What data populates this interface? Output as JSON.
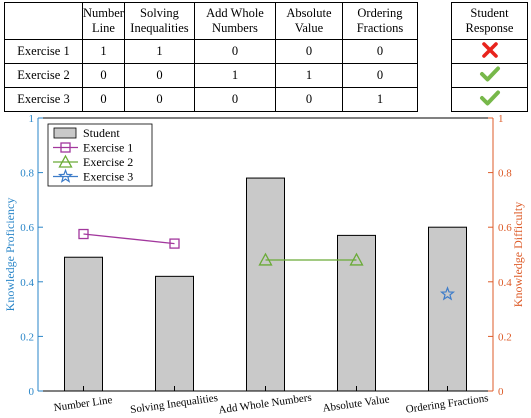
{
  "table": {
    "corner": "",
    "columns": [
      "Number\nLine",
      "Solving\nInequalities",
      "Add Whole\nNumbers",
      "Absolute\nValue",
      "Ordering\nFractions"
    ],
    "rows": [
      {
        "label": "Exercise 1",
        "values": [
          "1",
          "1",
          "0",
          "0",
          "0"
        ]
      },
      {
        "label": "Exercise 2",
        "values": [
          "0",
          "0",
          "1",
          "1",
          "0"
        ]
      },
      {
        "label": "Exercise 3",
        "values": [
          "0",
          "0",
          "0",
          "0",
          "1"
        ]
      }
    ]
  },
  "response": {
    "header": "Student\nResponse",
    "marks": [
      "wrong",
      "correct",
      "correct"
    ],
    "colors": {
      "wrong": "#e8231d",
      "correct": "#77b84a"
    }
  },
  "chart_data": {
    "type": "bar",
    "categories": [
      "Number Line",
      "Solving Inequalities",
      "Add Whole Numbers",
      "Absolute Value",
      "Ordering Fractions"
    ],
    "ylabel_left": "Knowledge Proficiency",
    "ylabel_right": "Knowledge Difficulty",
    "ylim": [
      0,
      1
    ],
    "yticks": [
      "0",
      "0.2",
      "0.4",
      "0.6",
      "0.8",
      "1"
    ],
    "series": [
      {
        "name": "Student",
        "kind": "bar",
        "values": [
          0.49,
          0.42,
          0.78,
          0.57,
          0.6
        ],
        "color": "#c9c9c9"
      },
      {
        "name": "Exercise 1",
        "kind": "line",
        "marker": "square",
        "color": "#a2379d",
        "points": [
          [
            0,
            0.575
          ],
          [
            1,
            0.54
          ]
        ]
      },
      {
        "name": "Exercise 2",
        "kind": "line",
        "marker": "triangle",
        "color": "#6aab37",
        "points": [
          [
            2,
            0.48
          ],
          [
            3,
            0.48
          ]
        ]
      },
      {
        "name": "Exercise 3",
        "kind": "line",
        "marker": "star",
        "color": "#3d7cc9",
        "points": [
          [
            4,
            0.355
          ]
        ]
      }
    ],
    "colors": {
      "left_axis": "#2a86c8",
      "right_axis": "#dd5b28"
    },
    "legend_position": "top-left",
    "grid": false
  }
}
